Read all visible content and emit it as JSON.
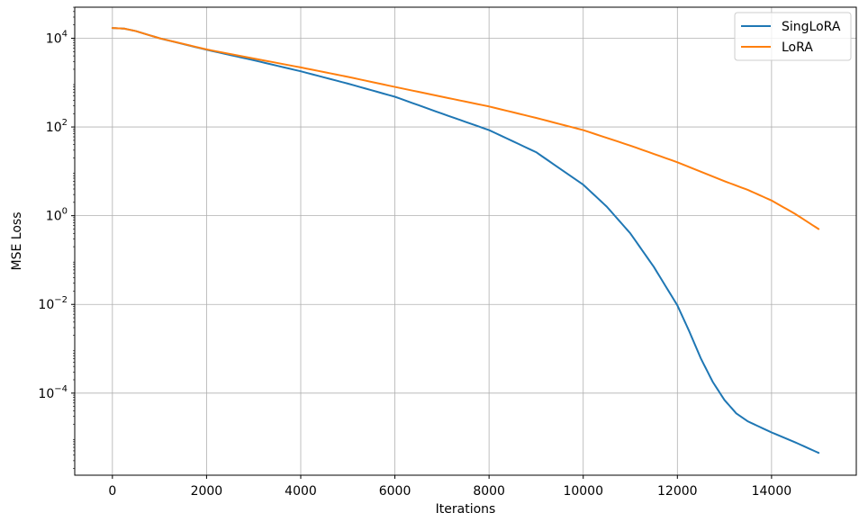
{
  "chart_data": {
    "type": "line",
    "title": "",
    "xlabel": "Iterations",
    "ylabel": "MSE Loss",
    "xlim": [
      -800,
      15800
    ],
    "ylim_log10": [
      -5.85,
      4.7
    ],
    "yscale": "log",
    "grid": true,
    "legend_position": "top-right",
    "x_ticks": [
      0,
      2000,
      4000,
      6000,
      8000,
      10000,
      12000,
      14000
    ],
    "x_tick_labels": [
      "0",
      "2000",
      "4000",
      "6000",
      "8000",
      "10000",
      "12000",
      "14000"
    ],
    "y_ticks": [
      {
        "log10": 4,
        "base": "10",
        "exp": "4"
      },
      {
        "log10": 2,
        "base": "10",
        "exp": "2"
      },
      {
        "log10": 0,
        "base": "10",
        "exp": "0"
      },
      {
        "log10": -2,
        "base": "10",
        "exp": "−2"
      },
      {
        "log10": -4,
        "base": "10",
        "exp": "−4"
      }
    ],
    "series": [
      {
        "name": "SingLoRA",
        "color": "#1f77b4",
        "x": [
          0,
          250,
          500,
          1000,
          2000,
          3000,
          4000,
          5000,
          6000,
          7000,
          8000,
          9000,
          10000,
          10500,
          11000,
          11500,
          12000,
          12250,
          12500,
          12750,
          13000,
          13250,
          13500,
          14000,
          14500,
          15000
        ],
        "y": [
          17000,
          16500,
          14500,
          10000,
          5500,
          3200,
          1800,
          950,
          480,
          200,
          85,
          27,
          5,
          1.6,
          0.4,
          0.07,
          0.0095,
          0.0025,
          0.0006,
          0.00018,
          7e-05,
          3.5e-05,
          2.3e-05,
          1.3e-05,
          7.8e-06,
          4.5e-06
        ]
      },
      {
        "name": "LoRA",
        "color": "#ff7f0e",
        "x": [
          0,
          250,
          500,
          1000,
          2000,
          3000,
          4000,
          5000,
          6000,
          7000,
          8000,
          9000,
          10000,
          11000,
          12000,
          13000,
          13500,
          14000,
          14500,
          15000
        ],
        "y": [
          17000,
          16500,
          14500,
          10000,
          5600,
          3500,
          2200,
          1350,
          800,
          480,
          290,
          160,
          85,
          38,
          16,
          6,
          3.8,
          2.2,
          1.1,
          0.5
        ]
      }
    ]
  }
}
